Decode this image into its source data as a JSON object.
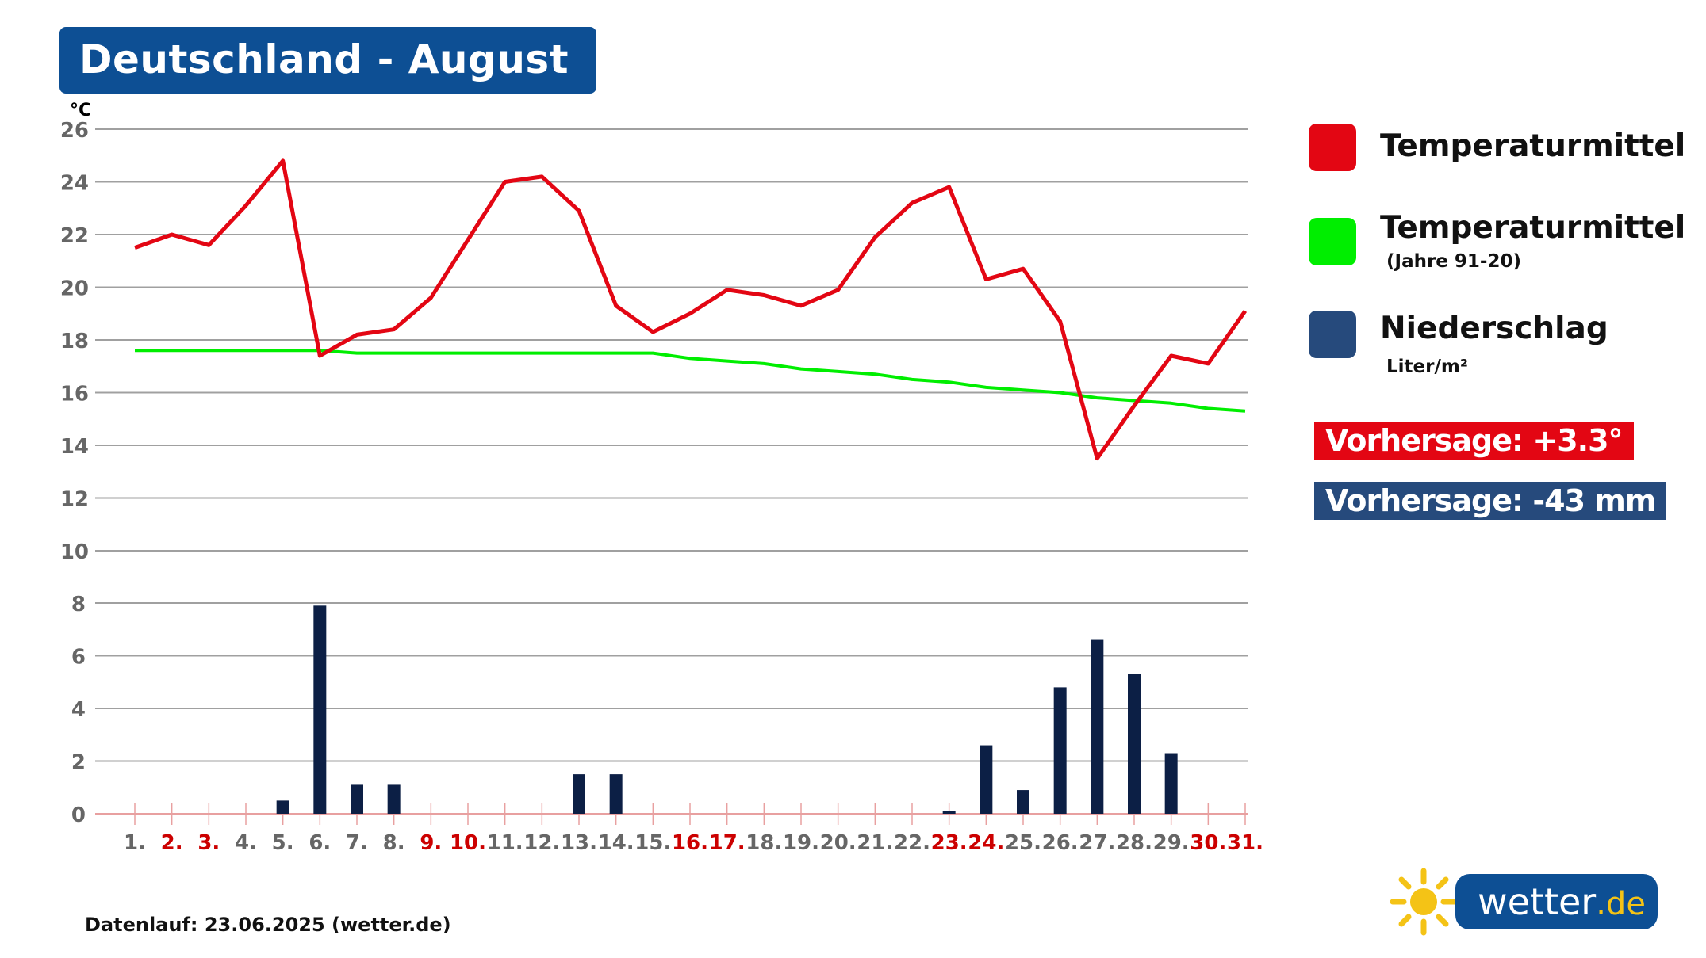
{
  "title": "Deutschland - August",
  "footer": "Datenlauf: 23.06.2025 (wetter.de)",
  "logo": {
    "name": "wetter",
    "tld": ".de",
    "icon": "sun-icon"
  },
  "legend": [
    {
      "label": "Temperaturmittel",
      "sub": "",
      "color": "#e30613"
    },
    {
      "label": "Temperaturmittel",
      "sub": "(Jahre 91-20)",
      "color": "#00ee00"
    },
    {
      "label": "Niederschlag",
      "sub": "Liter/m²",
      "color": "#264a7c"
    }
  ],
  "forecast": {
    "temp": {
      "text": "Vorhersage: +3.3°",
      "color": "#e30613"
    },
    "precip": {
      "text": "Vorhersage: -43 mm",
      "color": "#264a7c"
    }
  },
  "chart_data": {
    "type": "line+bar",
    "title": "Deutschland - August",
    "y_unit": "°C",
    "temp_axis": {
      "ylim": [
        10,
        26
      ],
      "ticks": [
        26,
        24,
        22,
        20,
        18,
        16,
        14,
        12,
        10
      ]
    },
    "precip_axis": {
      "ylim": [
        0,
        8
      ],
      "ticks": [
        8,
        6,
        4,
        2,
        0
      ]
    },
    "grid": true,
    "categories": [
      "1.",
      "2.",
      "3.",
      "4.",
      "5.",
      "6.",
      "7.",
      "8.",
      "9.",
      "10.",
      "11.",
      "12.",
      "13.",
      "14.",
      "15.",
      "16.",
      "17.",
      "18.",
      "19.",
      "20.",
      "21.",
      "22.",
      "23.",
      "24.",
      "25.",
      "26.",
      "27.",
      "28.",
      "29.",
      "30.",
      "31."
    ],
    "weekend_days": [
      "2.",
      "3.",
      "9.",
      "10.",
      "16.",
      "17.",
      "23.",
      "24.",
      "30.",
      "31."
    ],
    "series": [
      {
        "name": "Temperaturmittel",
        "type": "line",
        "color": "#e30613",
        "values": [
          21.5,
          22.0,
          21.6,
          23.1,
          24.8,
          17.4,
          18.2,
          18.4,
          19.6,
          21.8,
          24.0,
          24.2,
          22.9,
          19.3,
          18.3,
          19.0,
          19.9,
          19.7,
          19.3,
          19.9,
          21.9,
          23.2,
          23.8,
          20.3,
          20.7,
          18.7,
          13.5,
          15.5,
          17.4,
          17.1,
          19.1
        ]
      },
      {
        "name": "Temperaturmittel (Jahre 91-20)",
        "type": "line",
        "color": "#00ee00",
        "values": [
          17.6,
          17.6,
          17.6,
          17.6,
          17.6,
          17.6,
          17.5,
          17.5,
          17.5,
          17.5,
          17.5,
          17.5,
          17.5,
          17.5,
          17.5,
          17.3,
          17.2,
          17.1,
          16.9,
          16.8,
          16.7,
          16.5,
          16.4,
          16.2,
          16.1,
          16.0,
          15.8,
          15.7,
          15.6,
          15.4,
          15.3
        ]
      },
      {
        "name": "Niederschlag",
        "type": "bar",
        "color": "#0c1f45",
        "values": [
          0,
          0,
          0,
          0,
          0.5,
          7.9,
          1.1,
          1.1,
          0,
          0,
          0,
          0,
          1.5,
          1.5,
          0,
          0,
          0,
          0,
          0,
          0,
          0,
          0,
          0.1,
          2.6,
          0.9,
          4.8,
          6.6,
          5.3,
          2.3,
          0,
          0
        ]
      }
    ]
  }
}
